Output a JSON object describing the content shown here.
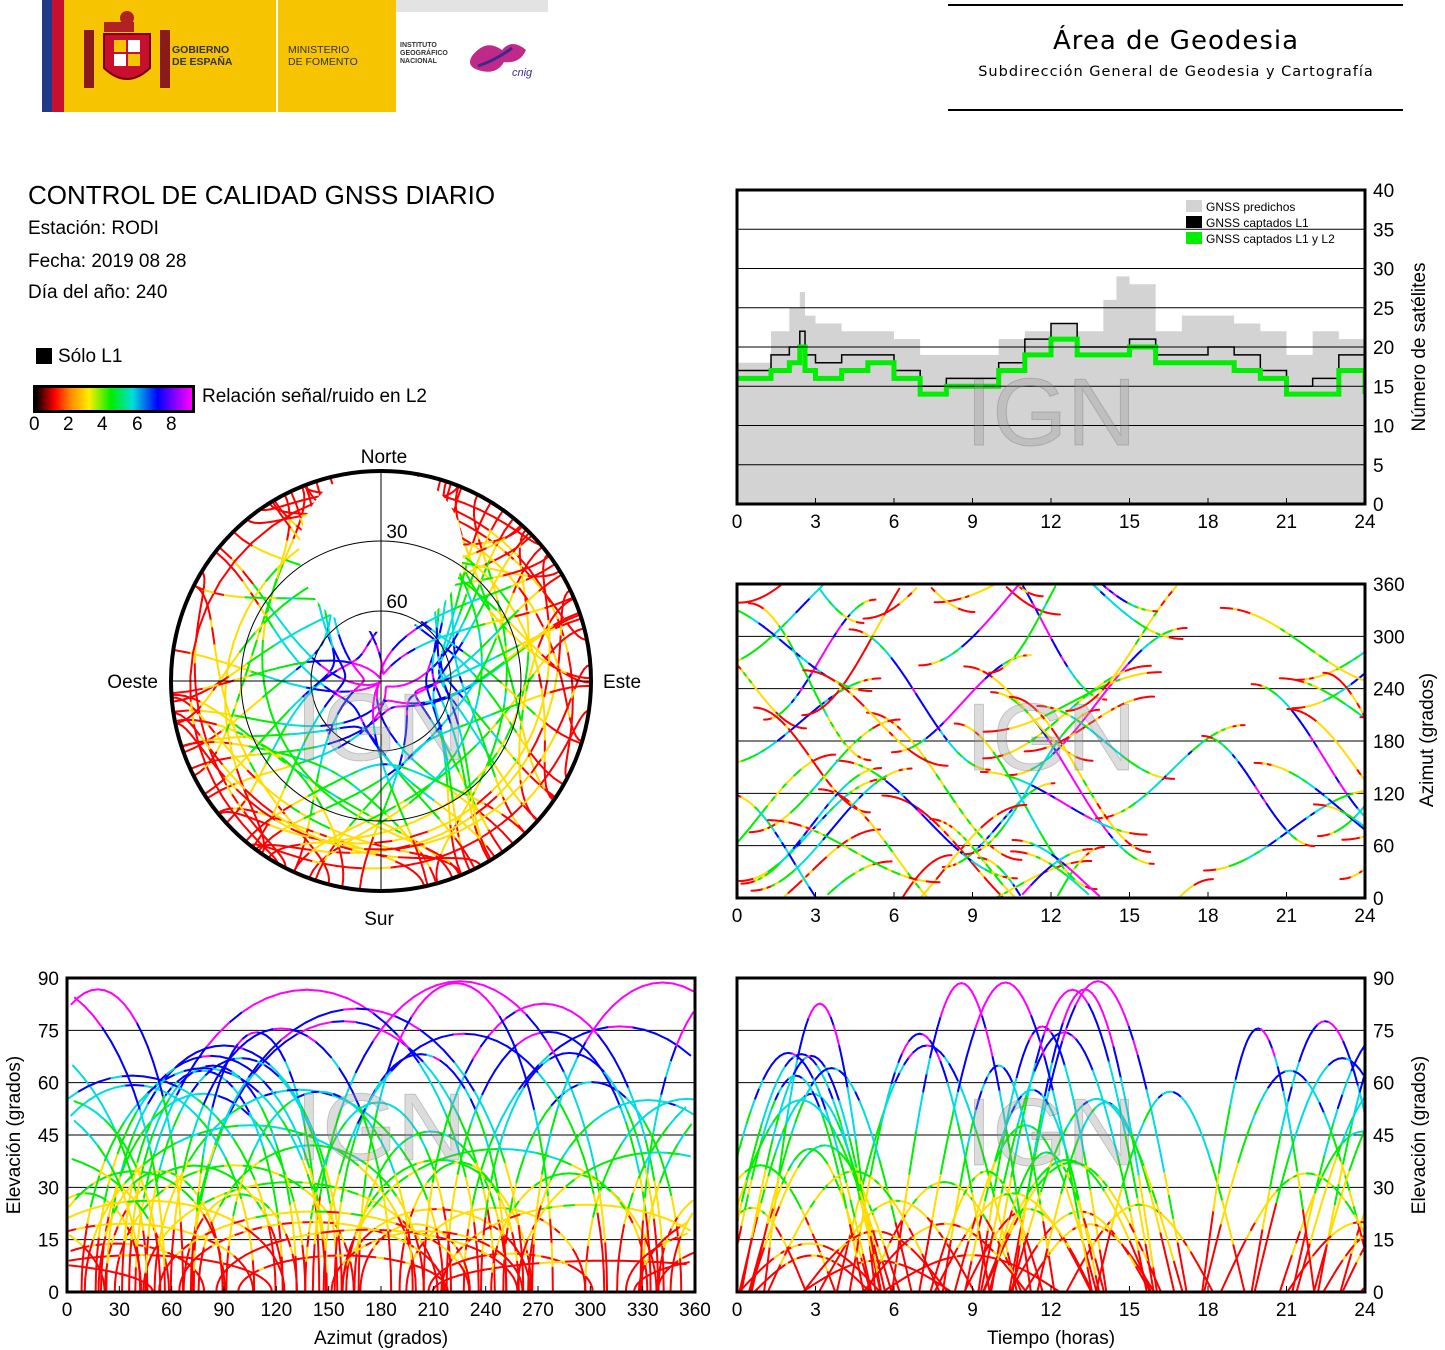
{
  "header": {
    "gobierno": [
      "GOBIERNO",
      "DE ESPAÑA"
    ],
    "ministerio": [
      "MINISTERIO",
      "DE FOMENTO"
    ],
    "instituto": [
      "INSTITUTO",
      "GEOGRÁFICO",
      "NACIONAL"
    ],
    "cnig": "cnig",
    "area_title": "Área de Geodesia",
    "area_subtitle": "Subdirección General de Geodesia y Cartografía"
  },
  "info": {
    "title": "CONTROL DE CALIDAD GNSS DIARIO",
    "station": "Estación: RODI",
    "date": "Fecha: 2019 08 28",
    "doy": "Día del año: 240"
  },
  "legend": {
    "l1_only": "Sólo L1",
    "snr_label": "Relación señal/ruido en L2",
    "snr_ticks": [
      "0",
      "2",
      "4",
      "6",
      "8"
    ],
    "colors": [
      "#000000",
      "#ff0000",
      "#ffdd00",
      "#00ee00",
      "#00dddd",
      "#0000ff",
      "#ff00ff"
    ]
  },
  "watermark": "IGN",
  "chart_data": [
    {
      "type": "area",
      "id": "satellites",
      "x_range": [
        0,
        24
      ],
      "ylim": [
        0,
        40
      ],
      "x_ticks": [
        "0",
        "3",
        "6",
        "9",
        "12",
        "15",
        "18",
        "21",
        "24"
      ],
      "y_ticks": [
        "0",
        "5",
        "10",
        "15",
        "20",
        "25",
        "30",
        "35",
        "40"
      ],
      "ylabel": "Número de satélites",
      "legend_position": "top-right",
      "series": [
        {
          "name": "GNSS predichos",
          "color": "#d3d3d3",
          "x": [
            0,
            1,
            1.3,
            2,
            2.4,
            2.6,
            3,
            4,
            5,
            6,
            7,
            8,
            9,
            10,
            11,
            12,
            13,
            14,
            14.5,
            15,
            16,
            17,
            18,
            19,
            20,
            21,
            22,
            23,
            24
          ],
          "values": [
            18,
            18,
            22,
            25,
            27,
            24,
            23,
            22,
            22,
            21,
            19,
            19,
            19,
            21,
            22,
            23,
            22,
            26,
            29,
            28,
            22,
            24,
            24,
            23,
            22,
            19,
            22,
            21,
            20
          ]
        },
        {
          "name": "GNSS captados L1",
          "color": "#000000",
          "x": [
            0,
            1,
            1.3,
            2,
            2.4,
            2.6,
            3,
            4,
            5,
            6,
            7,
            8,
            9,
            10,
            11,
            12,
            13,
            14,
            14.5,
            15,
            16,
            17,
            18,
            19,
            20,
            21,
            22,
            23,
            24
          ],
          "values": [
            17,
            17,
            19,
            20,
            22,
            19,
            18,
            19,
            19,
            17,
            15,
            16,
            16,
            18,
            21,
            23,
            20,
            20,
            20,
            21,
            19,
            19,
            20,
            19,
            17,
            15,
            16,
            19,
            15
          ]
        },
        {
          "name": "GNSS captados L1 y L2",
          "color": "#00ee00",
          "x": [
            0,
            1,
            1.3,
            2,
            2.4,
            2.6,
            3,
            4,
            5,
            6,
            7,
            8,
            9,
            10,
            11,
            12,
            13,
            14,
            14.5,
            15,
            16,
            17,
            18,
            19,
            20,
            21,
            22,
            23,
            24
          ],
          "values": [
            16,
            16,
            17,
            18,
            20,
            17,
            16,
            17,
            18,
            16,
            14,
            15,
            15,
            17,
            19,
            21,
            19,
            19,
            19,
            20,
            18,
            18,
            18,
            17,
            16,
            14,
            14,
            17,
            14
          ]
        }
      ]
    },
    {
      "type": "scatter",
      "id": "azimuth_time",
      "x_range": [
        0,
        24
      ],
      "ylim": [
        0,
        360
      ],
      "x_ticks": [
        "0",
        "3",
        "6",
        "9",
        "12",
        "15",
        "18",
        "21",
        "24"
      ],
      "y_ticks": [
        "0",
        "60",
        "120",
        "180",
        "240",
        "300",
        "360"
      ],
      "ylabel": "Azimut (grados)"
    },
    {
      "type": "scatter",
      "id": "skyplot",
      "labels": {
        "north": "Norte",
        "south": "Sur",
        "east": "Este",
        "west": "Oeste"
      },
      "rings": [
        "30",
        "60"
      ]
    },
    {
      "type": "scatter",
      "id": "elevation_azimuth",
      "x_range": [
        0,
        360
      ],
      "ylim": [
        0,
        90
      ],
      "x_ticks": [
        "0",
        "30",
        "60",
        "90",
        "120",
        "150",
        "180",
        "210",
        "240",
        "270",
        "300",
        "330",
        "360"
      ],
      "y_ticks": [
        "0",
        "15",
        "30",
        "45",
        "60",
        "75",
        "90"
      ],
      "xlabel": "Azimut (grados)",
      "ylabel": "Elevación (grados)"
    },
    {
      "type": "line",
      "id": "elevation_time",
      "x_range": [
        0,
        24
      ],
      "ylim": [
        0,
        90
      ],
      "x_ticks": [
        "0",
        "3",
        "6",
        "9",
        "12",
        "15",
        "18",
        "21",
        "24"
      ],
      "y_ticks": [
        "0",
        "15",
        "30",
        "45",
        "60",
        "75",
        "90"
      ],
      "xlabel": "Tiempo (horas)",
      "ylabel": "Elevación (grados)"
    }
  ]
}
